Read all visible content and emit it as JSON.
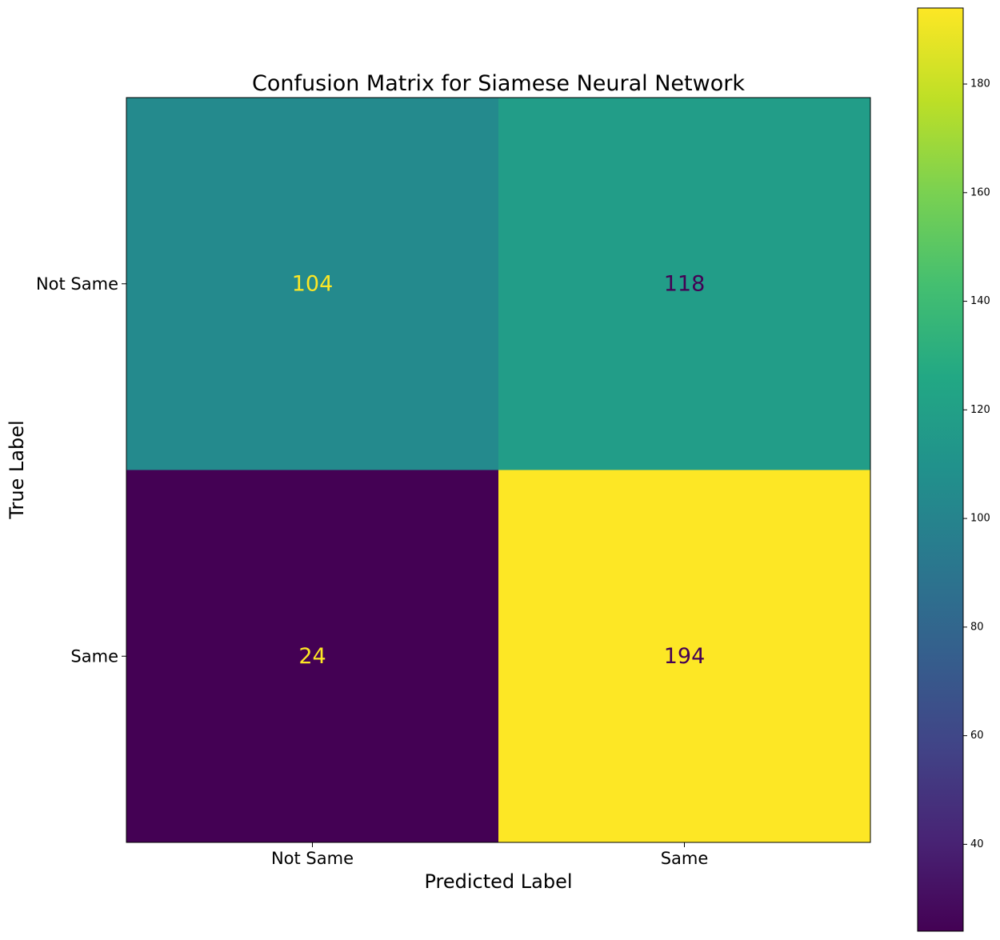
{
  "chart_data": {
    "type": "heatmap",
    "title": "Confusion Matrix for Siamese Neural Network",
    "xlabel": "Predicted Label",
    "ylabel": "True Label",
    "x_categories": [
      "Not Same",
      "Same"
    ],
    "y_categories": [
      "Not Same",
      "Same"
    ],
    "values": [
      [
        104,
        118
      ],
      [
        24,
        194
      ]
    ],
    "colormap": "viridis",
    "colorbar": {
      "range": [
        24,
        194
      ],
      "ticks": [
        40,
        60,
        80,
        100,
        120,
        140,
        160,
        180
      ]
    },
    "cell_label_colors": {
      "light": "#fde725",
      "dark": "#440154"
    },
    "grid": false
  }
}
